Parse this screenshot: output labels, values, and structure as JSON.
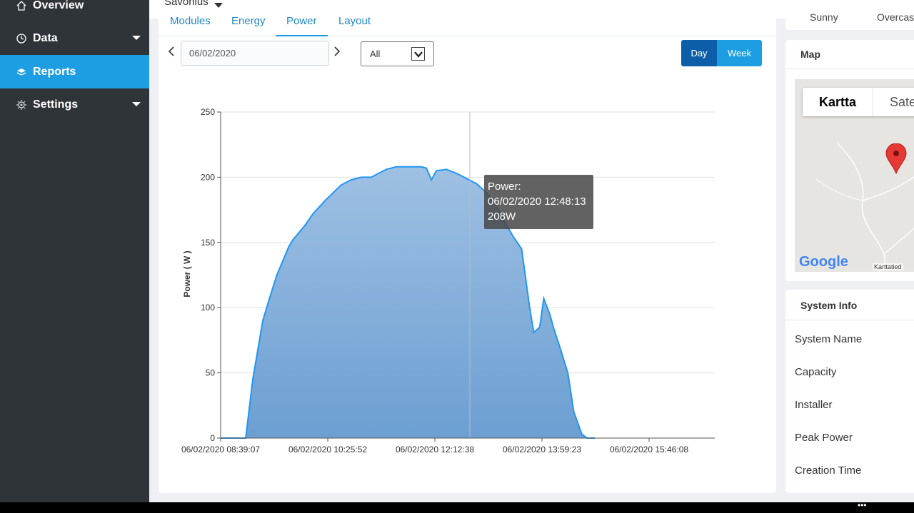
{
  "sidebar": {
    "items": [
      {
        "label": "Overview",
        "active": false
      },
      {
        "label": "Data",
        "active": false
      },
      {
        "label": "Reports",
        "active": true
      },
      {
        "label": "Settings",
        "active": false
      }
    ]
  },
  "topbar": {
    "site_name": "Savonius"
  },
  "tabs": [
    "Modules",
    "Energy",
    "Power",
    "Layout"
  ],
  "active_tab": "Power",
  "controls": {
    "date_value": "06/02/2020",
    "range_select": "All",
    "day_label": "Day",
    "week_label": "Week"
  },
  "chart_data": {
    "type": "area",
    "ylabel": "Power ( W )",
    "xlabel": "",
    "ylim": [
      0,
      250
    ],
    "yticks": [
      "0",
      "50",
      "100",
      "150",
      "200",
      "250"
    ],
    "xticks": [
      "06/02/2020 08:39:07",
      "06/02/2020 10:25:52",
      "06/02/2020 12:12:38",
      "06/02/2020 13:59:23",
      "06/02/2020 15:46:08"
    ],
    "series": [
      {
        "x_minutes_from_start": [
          0,
          25,
          32,
          42,
          49,
          56,
          68,
          72,
          84,
          92,
          98,
          104,
          112,
          120,
          130,
          140,
          150,
          155,
          165,
          175,
          190,
          200,
          205,
          210,
          215,
          225,
          235,
          245,
          255,
          265,
          275,
          282,
          292,
          300,
          308,
          312,
          318,
          322,
          328,
          332,
          338,
          346,
          352,
          360,
          365,
          373
        ],
        "values": [
          0,
          0,
          45,
          90,
          108,
          125,
          147,
          152,
          163,
          172,
          177,
          182,
          188,
          194,
          198,
          200,
          200,
          202,
          206,
          208,
          208,
          208,
          207,
          198,
          205,
          206,
          203,
          199,
          195,
          188,
          178,
          167,
          154,
          145,
          100,
          81,
          85,
          107,
          95,
          84,
          70,
          50,
          20,
          3,
          0,
          0
        ]
      }
    ]
  },
  "tooltip": {
    "line1": "Power:",
    "line2": "06/02/2020 12:48:13",
    "line3": "208W"
  },
  "weather": {
    "labels": [
      "Sunny",
      "Overcas"
    ]
  },
  "map_card": {
    "title": "Map",
    "tab_map": "Kartta",
    "tab_sat": "Sate",
    "google": "Google",
    "attribution": "Karttatied"
  },
  "system_info": {
    "title": "System Info",
    "rows": [
      "System Name",
      "Capacity",
      "Installer",
      "Peak Power",
      "Creation Time"
    ]
  },
  "colors": {
    "accent": "#1e9ee2",
    "sidebar": "#2f3439",
    "area_fill": "#7eaad5",
    "area_stroke": "#2196f3"
  }
}
